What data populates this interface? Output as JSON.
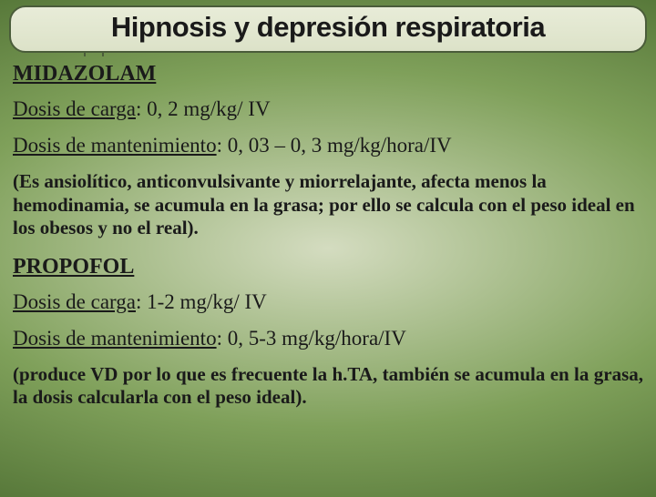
{
  "title": "Hipnosis y depresión respiratoria",
  "drug1": {
    "name": "MIDAZOLAM",
    "load_label": "Dosis de carga",
    "load_value": ": 0, 2 mg/kg/ IV",
    "maint_label": "Dosis de mantenimiento",
    "maint_value": ": 0, 03 – 0, 3 mg/kg/hora/IV",
    "note": "(Es ansiolítico, anticonvulsivante y miorrelajante, afecta menos la hemodinamia, se acumula en la grasa; por ello se calcula con el peso ideal en los obesos y no el real)."
  },
  "drug2": {
    "name": "PROPOFOL",
    "load_label": "Dosis de carga",
    "load_value": ": 1-2 mg/kg/ IV",
    "maint_label": "Dosis de mantenimiento",
    "maint_value": ": 0, 5-3 mg/kg/hora/IV",
    "note": "(produce VD por lo que es frecuente la h.TA, también se acumula en la grasa, la dosis calcularla con el peso ideal)."
  }
}
